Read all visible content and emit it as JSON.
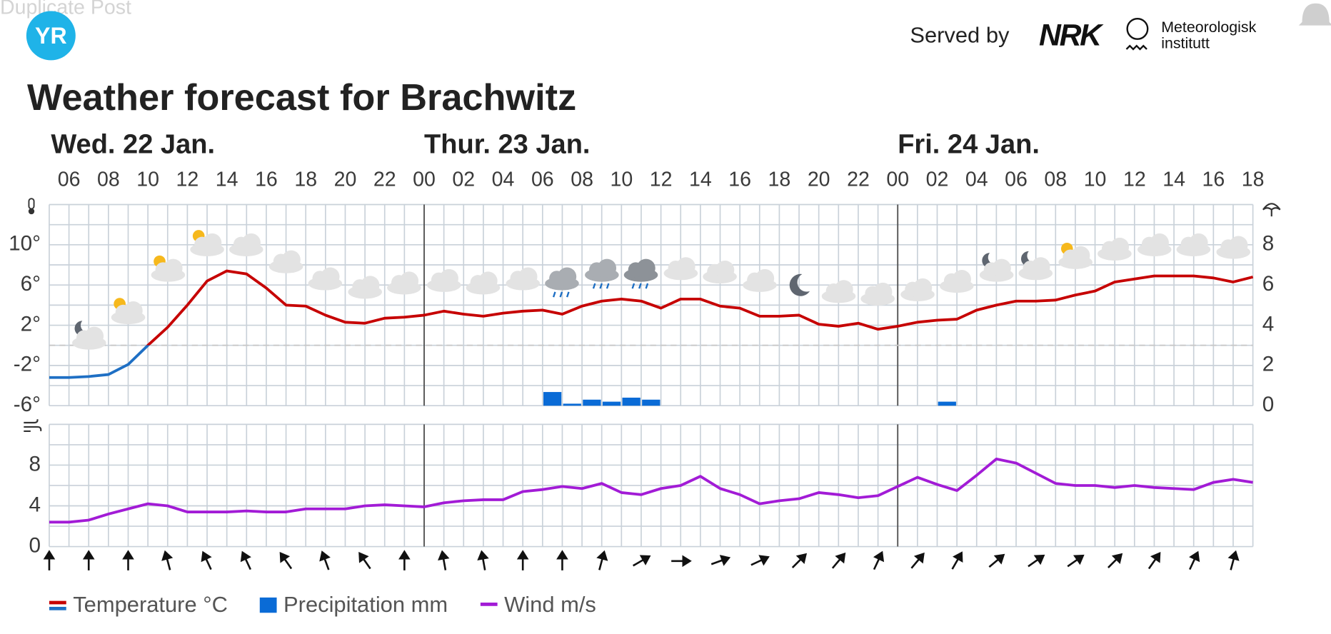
{
  "header": {
    "overlay": "Duplicate Post",
    "logo": "YR",
    "served_by": "Served by",
    "nrk": "NRK",
    "met_line1": "Meteorologisk",
    "met_line2": "institutt"
  },
  "chart_data": [
    {
      "type": "line",
      "title": "Weather forecast for Brachwitz",
      "days": [
        "Wed. 22 Jan.",
        "Thur. 23 Jan.",
        "Fri. 24 Jan."
      ],
      "categories": [
        null,
        "06",
        null,
        "08",
        null,
        "10",
        null,
        "12",
        null,
        "14",
        null,
        "16",
        null,
        "18",
        null,
        "20",
        null,
        "22",
        null,
        "00",
        null,
        "02",
        null,
        "04",
        null,
        "06",
        null,
        "08",
        null,
        "10",
        null,
        "12",
        null,
        "14",
        null,
        "16",
        null,
        "18",
        null,
        "20",
        null,
        "22",
        null,
        "00",
        null,
        "02",
        null,
        "04",
        null,
        "06",
        null,
        "08",
        null,
        "10",
        null,
        "12",
        null,
        "14",
        null,
        "16",
        null,
        "18"
      ],
      "ylim": [
        -6,
        14
      ],
      "yticks": [
        {
          "value": 10,
          "label": "10°"
        },
        {
          "value": 6,
          "label": "6°"
        },
        {
          "value": 2,
          "label": "2°"
        },
        {
          "value": -2,
          "label": "-2°"
        },
        {
          "value": -6,
          "label": "-6°"
        }
      ],
      "ygrid": [
        -6,
        -4,
        -2,
        0,
        2,
        4,
        6,
        8,
        10,
        12,
        14
      ],
      "y2lim": [
        0,
        10
      ],
      "y2ticks": [
        0,
        2,
        4,
        6,
        8
      ],
      "series": [
        {
          "name": "Temperature °C",
          "color": "#c60000",
          "below_zero_color": "#1e6fc4",
          "values": [
            -3.2,
            -3.2,
            -3.1,
            -2.9,
            -1.9,
            0,
            1.8,
            4.0,
            6.4,
            7.4,
            7.1,
            5.7,
            4.0,
            3.9,
            3.0,
            2.3,
            2.2,
            2.7,
            2.8,
            3.0,
            3.4,
            3.1,
            2.9,
            3.2,
            3.4,
            3.5,
            3.1,
            3.9,
            4.4,
            4.6,
            4.4,
            3.7,
            4.6,
            4.6,
            3.9,
            3.7,
            2.9,
            2.9,
            3.0,
            2.1,
            1.9,
            2.2,
            1.6,
            1.9,
            2.3,
            2.5,
            2.6,
            3.5,
            4.0,
            4.4,
            4.4,
            4.5,
            5.0,
            5.4,
            6.3,
            6.6,
            6.9,
            6.9,
            6.9,
            6.7,
            6.3,
            6.8
          ]
        },
        {
          "name": "Precipitation mm",
          "type": "bar",
          "axis": "y2",
          "color": "#0a6bd6",
          "values": [
            0,
            0,
            0,
            0,
            0,
            0,
            0,
            0,
            0,
            0,
            0,
            0,
            0,
            0,
            0,
            0,
            0,
            0,
            0,
            0,
            0,
            0,
            0,
            0,
            0,
            0.68,
            0.1,
            0.3,
            0.2,
            0.4,
            0.3,
            0,
            0,
            0,
            0,
            0,
            0,
            0,
            0,
            0,
            0,
            0,
            0,
            0,
            0,
            0.2,
            0,
            0,
            0,
            0,
            0,
            0,
            0,
            0,
            0,
            0,
            0,
            0,
            0,
            0,
            0,
            0
          ]
        }
      ]
    },
    {
      "type": "line",
      "ylim": [
        0,
        12
      ],
      "yticks": [
        0,
        4,
        8
      ],
      "ygrid": [
        0,
        2,
        4,
        6,
        8,
        10,
        12
      ],
      "series": [
        {
          "name": "Wind m/s",
          "color": "#a21bd6",
          "values": [
            2.4,
            2.4,
            2.6,
            3.2,
            3.7,
            4.2,
            4.0,
            3.4,
            3.4,
            3.4,
            3.5,
            3.4,
            3.4,
            3.7,
            3.7,
            3.7,
            4.0,
            4.1,
            4.0,
            3.9,
            4.3,
            4.5,
            4.6,
            4.6,
            5.4,
            5.6,
            5.9,
            5.7,
            6.2,
            5.3,
            5.1,
            5.7,
            6.0,
            6.9,
            5.7,
            5.1,
            4.2,
            4.5,
            4.7,
            5.3,
            5.1,
            4.8,
            5.0,
            5.9,
            6.8,
            6.1,
            5.5,
            7.0,
            8.6,
            8.2,
            7.2,
            6.2,
            6.0,
            6.0,
            5.8,
            6.0,
            5.8,
            5.7,
            5.6,
            6.3,
            6.6,
            6.3
          ]
        }
      ],
      "arrow_angles": [
        0,
        0,
        0,
        -15,
        -25,
        -25,
        -35,
        -20,
        -35,
        0,
        -10,
        -10,
        0,
        0,
        15,
        60,
        90,
        70,
        65,
        45,
        40,
        25,
        40,
        30,
        50,
        55,
        55,
        45,
        35,
        25,
        15
      ]
    }
  ]
}
